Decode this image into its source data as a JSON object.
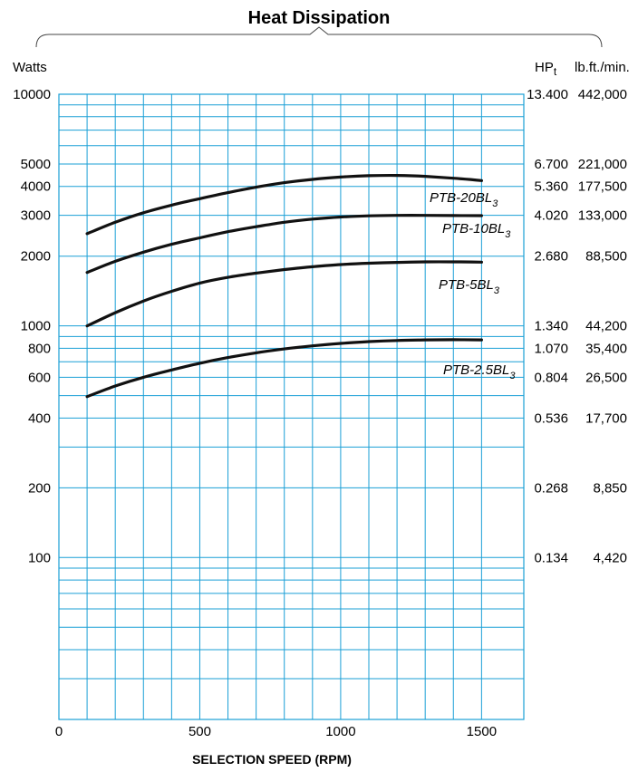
{
  "chart_data": {
    "type": "line",
    "title": "Heat Dissipation",
    "xlabel": "SELECTION SPEED (RPM)",
    "ylabel_left": "Watts",
    "ylabel_right_1": "HPt",
    "ylabel_right_1_main": "HP",
    "ylabel_right_1_sub": "t",
    "ylabel_right_2": "lb.ft./min.",
    "y_scale": "log",
    "xlim": [
      0,
      1650
    ],
    "ylim": [
      20,
      10000
    ],
    "x_ticks": [
      {
        "value": 0,
        "label": "0"
      },
      {
        "value": 500,
        "label": "500"
      },
      {
        "value": 1000,
        "label": "1000"
      },
      {
        "value": 1500,
        "label": "1500"
      }
    ],
    "x_grid": [
      100,
      200,
      300,
      400,
      500,
      600,
      700,
      800,
      900,
      1000,
      1100,
      1200,
      1300,
      1400,
      1500
    ],
    "y_grid": [
      20,
      30,
      40,
      50,
      60,
      70,
      80,
      90,
      100,
      200,
      300,
      400,
      500,
      600,
      700,
      800,
      900,
      1000,
      2000,
      3000,
      4000,
      5000,
      6000,
      7000,
      8000,
      9000,
      10000
    ],
    "y_ticks_left": [
      {
        "value": 10000,
        "label": "10000"
      },
      {
        "value": 5000,
        "label": "5000"
      },
      {
        "value": 4000,
        "label": "4000"
      },
      {
        "value": 3000,
        "label": "3000"
      },
      {
        "value": 2000,
        "label": "2000"
      },
      {
        "value": 1000,
        "label": "1000"
      },
      {
        "value": 800,
        "label": "800"
      },
      {
        "value": 600,
        "label": "600"
      },
      {
        "value": 400,
        "label": "400"
      },
      {
        "value": 200,
        "label": "200"
      },
      {
        "value": 100,
        "label": "100"
      }
    ],
    "y_ticks_right": [
      {
        "value": 10000,
        "hp": "13.400",
        "lbft": "442,000"
      },
      {
        "value": 5000,
        "hp": "6.700",
        "lbft": "221,000"
      },
      {
        "value": 4000,
        "hp": "5.360",
        "lbft": "177,500"
      },
      {
        "value": 3000,
        "hp": "4.020",
        "lbft": "133,000"
      },
      {
        "value": 2000,
        "hp": "2.680",
        "lbft": "88,500"
      },
      {
        "value": 1000,
        "hp": "1.340",
        "lbft": "44,200"
      },
      {
        "value": 800,
        "hp": "1.070",
        "lbft": "35,400"
      },
      {
        "value": 600,
        "hp": "0.804",
        "lbft": "26,500"
      },
      {
        "value": 400,
        "hp": "0.536",
        "lbft": "17,700"
      },
      {
        "value": 200,
        "hp": "0.268",
        "lbft": "8,850"
      },
      {
        "value": 100,
        "hp": "0.134",
        "lbft": "4,420"
      }
    ],
    "series": [
      {
        "name": "PTB-20BL3",
        "label_main": "PTB-20BL",
        "label_sub": "3",
        "x": [
          100,
          200,
          300,
          400,
          500,
          600,
          700,
          800,
          900,
          1000,
          1100,
          1200,
          1300,
          1400,
          1500
        ],
        "y": [
          2500,
          2800,
          3080,
          3320,
          3540,
          3760,
          3970,
          4150,
          4290,
          4390,
          4450,
          4460,
          4420,
          4340,
          4240
        ]
      },
      {
        "name": "PTB-10BL3",
        "label_main": "PTB-10BL",
        "label_sub": "3",
        "x": [
          100,
          200,
          300,
          400,
          500,
          600,
          700,
          800,
          900,
          1000,
          1100,
          1200,
          1300,
          1400,
          1500
        ],
        "y": [
          1700,
          1900,
          2080,
          2250,
          2400,
          2550,
          2680,
          2800,
          2890,
          2950,
          2985,
          3000,
          3000,
          2995,
          2990
        ]
      },
      {
        "name": "PTB-5BL3",
        "label_main": "PTB-5BL",
        "label_sub": "3",
        "x": [
          100,
          200,
          300,
          400,
          500,
          600,
          700,
          800,
          900,
          1000,
          1100,
          1200,
          1300,
          1400,
          1500
        ],
        "y": [
          1000,
          1140,
          1280,
          1410,
          1530,
          1620,
          1690,
          1750,
          1800,
          1840,
          1865,
          1880,
          1890,
          1890,
          1885
        ]
      },
      {
        "name": "PTB-2.5BL3",
        "label_main": "PTB-2.5BL",
        "label_sub": "3",
        "x": [
          100,
          200,
          300,
          400,
          500,
          600,
          700,
          800,
          900,
          1000,
          1100,
          1200,
          1300,
          1400,
          1500
        ],
        "y": [
          495,
          550,
          600,
          645,
          690,
          730,
          765,
          795,
          820,
          840,
          855,
          865,
          870,
          872,
          870
        ]
      }
    ],
    "grid": true
  }
}
